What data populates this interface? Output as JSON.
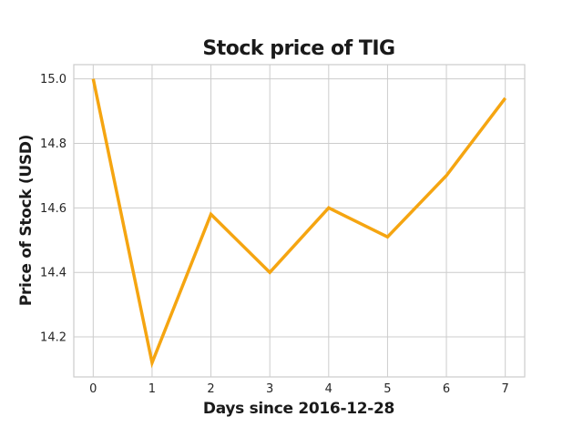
{
  "chart_data": {
    "type": "line",
    "title": "Stock price of TIG",
    "xlabel": "Days since 2016-12-28",
    "ylabel": "Price of Stock (USD)",
    "x": [
      0,
      1,
      2,
      3,
      4,
      5,
      6,
      7
    ],
    "series": [
      {
        "values": [
          15.0,
          14.12,
          14.58,
          14.4,
          14.6,
          14.51,
          14.7,
          14.94
        ],
        "color": "#F5A511"
      }
    ],
    "xlim": [
      -0.33,
      7.33
    ],
    "ylim": [
      14.076,
      15.044
    ],
    "xticks": [
      0,
      1,
      2,
      3,
      4,
      5,
      6,
      7
    ],
    "yticks": [
      14.2,
      14.4,
      14.6,
      14.8,
      15.0
    ],
    "ytick_labels": [
      "14.2",
      "14.4",
      "14.6",
      "14.8",
      "15.0"
    ],
    "xtick_labels": [
      "0",
      "1",
      "2",
      "3",
      "4",
      "5",
      "6",
      "7"
    ],
    "grid": true,
    "legend": false
  }
}
